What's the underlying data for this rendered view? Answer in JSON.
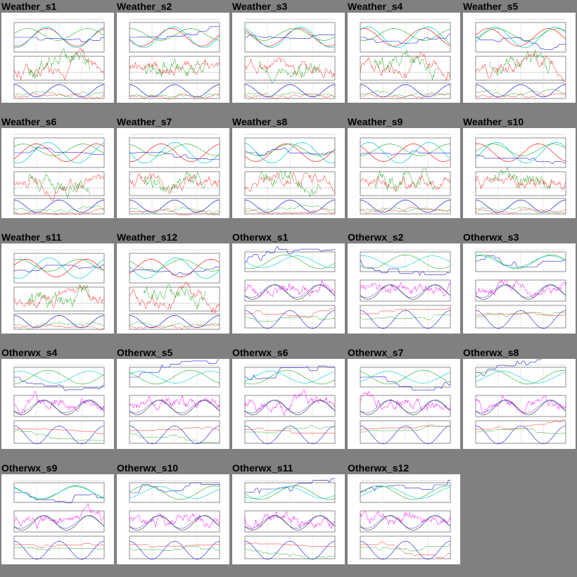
{
  "thumbnails": [
    {
      "title": "Weather_s1"
    },
    {
      "title": "Weather_s2"
    },
    {
      "title": "Weather_s3"
    },
    {
      "title": "Weather_s4"
    },
    {
      "title": "Weather_s5"
    },
    {
      "title": "Weather_s6"
    },
    {
      "title": "Weather_s7"
    },
    {
      "title": "Weather_s8"
    },
    {
      "title": "Weather_s9"
    },
    {
      "title": "Weather_s10"
    },
    {
      "title": "Weather_s11"
    },
    {
      "title": "Weather_s12"
    },
    {
      "title": "Otherwx_s1"
    },
    {
      "title": "Otherwx_s2"
    },
    {
      "title": "Otherwx_s3"
    },
    {
      "title": "Otherwx_s4"
    },
    {
      "title": "Otherwx_s5"
    },
    {
      "title": "Otherwx_s6"
    },
    {
      "title": "Otherwx_s7"
    },
    {
      "title": "Otherwx_s8"
    },
    {
      "title": "Otherwx_s9"
    },
    {
      "title": "Otherwx_s10"
    },
    {
      "title": "Otherwx_s11"
    },
    {
      "title": "Otherwx_s12"
    }
  ],
  "colors": {
    "background": "#808080",
    "panel": "#ffffff",
    "temperature": "#ff2020",
    "dewpoint": "#22aa22",
    "pressure": "#2020dd",
    "humidity": "#00cccc",
    "magenta": "#ff00ff",
    "axis": "#444444"
  }
}
